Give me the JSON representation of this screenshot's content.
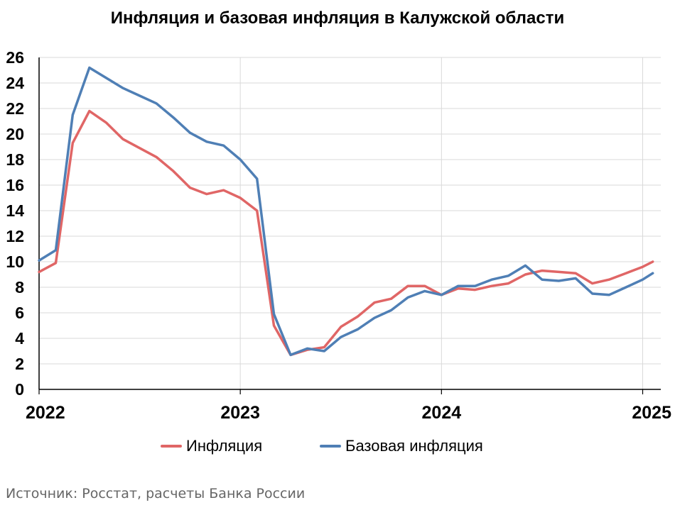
{
  "chart_data": {
    "type": "line",
    "title": "Инфляция и базовая инфляция в Калужской области",
    "xlabel": "",
    "ylabel": "",
    "ylim": [
      0,
      26
    ],
    "yticks": [
      0,
      2,
      4,
      6,
      8,
      10,
      12,
      14,
      16,
      18,
      20,
      22,
      24,
      26
    ],
    "xlim": [
      2022.0,
      2025.09
    ],
    "xticks": [
      {
        "label": "2022",
        "value": 2022.0
      },
      {
        "label": "2023",
        "value": 2023.0
      },
      {
        "label": "2024",
        "value": 2024.0
      },
      {
        "label": "2025",
        "value": 2025.0
      }
    ],
    "grid": true,
    "legend_position": "bottom",
    "x": [
      2022.0,
      2022.083,
      2022.167,
      2022.25,
      2022.333,
      2022.417,
      2022.5,
      2022.583,
      2022.667,
      2022.75,
      2022.833,
      2022.917,
      2023.0,
      2023.083,
      2023.167,
      2023.25,
      2023.333,
      2023.417,
      2023.5,
      2023.583,
      2023.667,
      2023.75,
      2023.833,
      2023.917,
      2024.0,
      2024.083,
      2024.167,
      2024.25,
      2024.333,
      2024.417,
      2024.5,
      2024.583,
      2024.667,
      2024.75,
      2024.833,
      2024.917,
      2025.0,
      2025.05
    ],
    "series": [
      {
        "name": "Инфляция",
        "color": "#e06666",
        "values": [
          9.2,
          9.9,
          19.3,
          21.8,
          20.9,
          19.6,
          18.9,
          18.2,
          17.1,
          15.8,
          15.3,
          15.6,
          15.0,
          14.0,
          5.0,
          2.7,
          3.1,
          3.3,
          4.9,
          5.7,
          6.8,
          7.1,
          8.1,
          8.1,
          7.4,
          7.9,
          7.8,
          8.1,
          8.3,
          9.0,
          9.3,
          9.2,
          9.1,
          8.3,
          8.6,
          9.1,
          9.6,
          10.0
        ]
      },
      {
        "name": "Базовая инфляция",
        "color": "#4f7fb5",
        "values": [
          10.1,
          10.9,
          21.5,
          25.2,
          24.4,
          23.6,
          23.0,
          22.4,
          21.3,
          20.1,
          19.4,
          19.1,
          18.0,
          16.5,
          5.9,
          2.7,
          3.2,
          3.0,
          4.1,
          4.7,
          5.6,
          6.2,
          7.2,
          7.7,
          7.4,
          8.1,
          8.1,
          8.6,
          8.9,
          9.7,
          8.6,
          8.5,
          8.7,
          7.5,
          7.4,
          8.0,
          8.6,
          9.1
        ]
      }
    ],
    "source": "Источник: Росстат, расчеты Банка России"
  }
}
